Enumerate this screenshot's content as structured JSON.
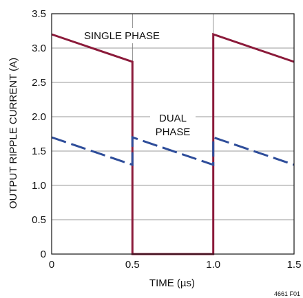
{
  "chart_data": {
    "type": "line",
    "title": "",
    "xlabel": "TIME (µs)",
    "ylabel": "OUTPUT RIPPLE CURRENT (A)",
    "xlim": [
      0,
      1.5
    ],
    "ylim": [
      0,
      3.5
    ],
    "x_ticks": [
      "0",
      "0.5",
      "1.0",
      "1.5"
    ],
    "y_ticks": [
      "0",
      "0.5",
      "1.0",
      "1.5",
      "2.0",
      "2.5",
      "3.0",
      "3.5"
    ],
    "grid": true,
    "series": [
      {
        "name": "SINGLE PHASE",
        "color": "#8b1a3a",
        "style": "solid",
        "points": [
          [
            0,
            3.2
          ],
          [
            0.5,
            2.8
          ],
          [
            0.5,
            0
          ],
          [
            1.0,
            0
          ],
          [
            1.0,
            3.2
          ],
          [
            1.5,
            2.8
          ]
        ]
      },
      {
        "name": "DUAL PHASE",
        "color": "#2e4d9a",
        "style": "dashed",
        "points": [
          [
            0,
            1.7
          ],
          [
            0.5,
            1.3
          ],
          [
            0.5,
            1.7
          ],
          [
            1.0,
            1.3
          ],
          [
            1.0,
            1.7
          ],
          [
            1.5,
            1.3
          ]
        ]
      }
    ],
    "annotations": {
      "single_phase": "SINGLE PHASE",
      "dual_phase_line1": "DUAL",
      "dual_phase_line2": "PHASE"
    },
    "figure_code": "4661 F01"
  }
}
